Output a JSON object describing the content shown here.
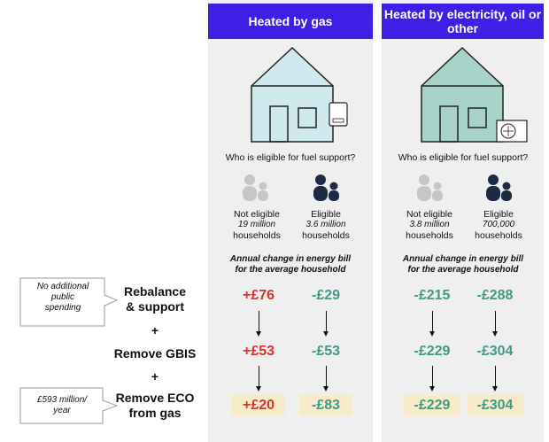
{
  "columns": {
    "gas": {
      "title": "Heated by gas",
      "question": "Who is eligible for fuel support?",
      "not_eligible": {
        "label": "Not eligible",
        "count": "19 million",
        "unit": "households"
      },
      "eligible": {
        "label": "Eligible",
        "count": "3.6 million",
        "unit": "households"
      },
      "annotation_line1": "Annual change in energy bill",
      "annotation_line2": "for the average household",
      "values": {
        "rebalance": {
          "not_eligible": "+£76",
          "eligible": "-£29"
        },
        "gbis": {
          "not_eligible": "+£53",
          "eligible": "-£53"
        },
        "eco": {
          "not_eligible": "+£20",
          "eligible": "-£83"
        }
      }
    },
    "elec": {
      "title": "Heated by electricity, oil or other",
      "question": "Who is eligible for fuel support?",
      "not_eligible": {
        "label": "Not eligible",
        "count": "3.8 million",
        "unit": "households"
      },
      "eligible": {
        "label": "Eligible",
        "count": "700,000",
        "unit": "households"
      },
      "annotation_line1": "Annual change in energy bill",
      "annotation_line2": "for the average household",
      "values": {
        "rebalance": {
          "not_eligible": "-£215",
          "eligible": "-£288"
        },
        "gbis": {
          "not_eligible": "-£229",
          "eligible": "-£304"
        },
        "eco": {
          "not_eligible": "-£229",
          "eligible": "-£304"
        }
      }
    }
  },
  "rows": {
    "rebalance_line1": "Rebalance",
    "rebalance_line2": "& support",
    "plus": "+",
    "gbis": "Remove GBIS",
    "eco_line1": "Remove ECO",
    "eco_line2": "from gas"
  },
  "notes": {
    "no_spending_line1": "No additional",
    "no_spending_line2": "public",
    "no_spending_line3": "spending",
    "cost_line1": "£593 million/",
    "cost_line2": "year"
  },
  "colors": {
    "header": "#3f1ee6",
    "increase": "#d9332f",
    "decrease": "#3f9a86",
    "gas_house": "#cfe9ef",
    "elec_house": "#a8d3c9",
    "eligible_person": "#1d2a44",
    "not_eligible_person": "#c6c6c6",
    "highlight": "#f7ebc9"
  },
  "icons": {
    "gas_boiler": "boiler-icon",
    "heat_pump": "heat-pump-icon"
  }
}
